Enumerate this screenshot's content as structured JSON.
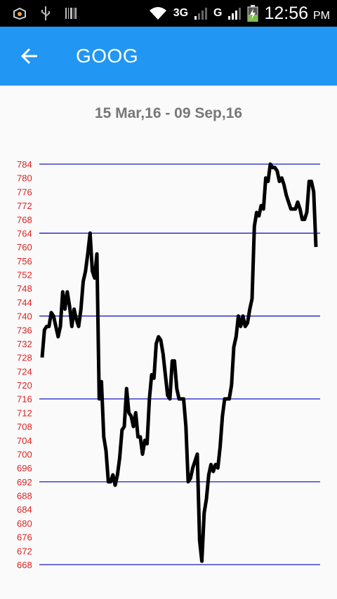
{
  "status_bar": {
    "network_3g": "3G",
    "network_g": "G",
    "time": "12:56",
    "ampm": "PM"
  },
  "app_bar": {
    "title": "GOOG",
    "back_icon": "arrow-back-icon",
    "color": "#2196f3"
  },
  "date_range": "15 Mar,16 - 09 Sep,16",
  "chart_data": {
    "type": "line",
    "title": "",
    "xlabel": "",
    "ylabel": "",
    "ylim": [
      668,
      784
    ],
    "y_ticks": [
      668,
      672,
      676,
      680,
      684,
      688,
      692,
      696,
      700,
      704,
      708,
      712,
      716,
      720,
      724,
      728,
      732,
      736,
      740,
      744,
      748,
      752,
      756,
      760,
      764,
      768,
      772,
      776,
      780,
      784
    ],
    "gridlines": [
      668,
      692,
      716,
      740,
      764,
      784
    ],
    "grid": true,
    "line_color": "#000000",
    "grid_color": "#1a1acc",
    "tick_color": "#e02020",
    "series": [
      {
        "values": [
          728,
          736,
          737,
          737,
          741,
          740,
          737,
          734,
          737,
          747,
          742,
          747,
          743,
          737,
          742,
          739,
          737,
          742,
          750,
          753,
          758,
          764,
          753,
          751,
          758,
          716,
          721,
          705,
          701,
          692,
          692,
          694,
          691,
          694,
          699,
          707,
          708,
          719,
          712,
          711,
          708,
          712,
          705,
          705,
          700,
          704,
          703,
          716,
          723,
          722,
          732,
          734,
          733,
          729,
          723,
          717,
          716,
          727,
          727,
          719,
          716,
          716,
          716,
          708,
          692,
          693,
          696,
          698,
          700,
          675,
          669,
          683,
          687,
          694,
          697,
          695,
          697,
          696,
          702,
          711,
          716,
          716,
          716,
          720,
          731,
          734,
          740,
          737,
          740,
          737,
          738,
          742,
          745,
          766,
          770,
          769,
          772,
          771,
          780,
          779,
          784,
          783,
          783,
          782,
          779,
          780,
          778,
          775,
          773,
          771,
          771,
          771,
          773,
          771,
          768,
          768,
          770,
          779,
          779,
          776,
          760
        ]
      }
    ]
  }
}
